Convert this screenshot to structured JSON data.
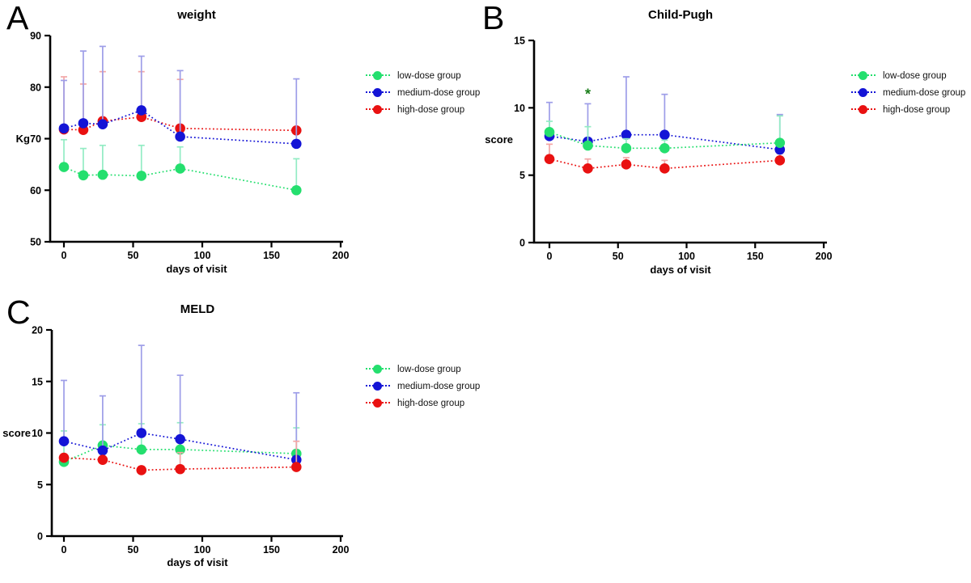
{
  "colors": {
    "low": "#24DF6E",
    "medium": "#1414D6",
    "high": "#E91111",
    "low_pale": "#93ECC4",
    "medium_pale": "#9E9EE8",
    "high_pale": "#F3A6A6",
    "annotation_green": "#1B7E1B",
    "axis": "#000000"
  },
  "chart_data": [
    {
      "panel_letter": "A",
      "type": "line",
      "title": "weight",
      "xlabel": "days of visit",
      "ylabel": "Kg",
      "x": [
        0,
        14,
        28,
        56,
        84,
        168
      ],
      "xticks": [
        0,
        50,
        100,
        150,
        200
      ],
      "yticks": [
        50,
        60,
        70,
        80,
        90
      ],
      "xlim": [
        0,
        200
      ],
      "ylim": [
        50,
        90
      ],
      "grid": false,
      "legend_position": "right",
      "series": [
        {
          "name": "low-dose group",
          "key": "low",
          "y": [
            64.5,
            62.9,
            63.0,
            62.8,
            64.2,
            60.0
          ],
          "err_top": [
            69.8,
            68.1,
            68.7,
            68.7,
            68.4,
            66.1
          ]
        },
        {
          "name": "medium-dose group",
          "key": "medium",
          "y": [
            72.0,
            73.0,
            72.8,
            75.5,
            70.4,
            69.0
          ],
          "err_top": [
            81.3,
            87.0,
            87.9,
            86.0,
            83.2,
            81.6
          ]
        },
        {
          "name": "high-dose group",
          "key": "high",
          "y": [
            71.8,
            71.7,
            73.4,
            74.2,
            72.0,
            71.6
          ],
          "err_top": [
            82.0,
            80.6,
            83.0,
            83.0,
            81.5,
            null
          ]
        }
      ],
      "z_order": [
        0,
        2,
        1
      ],
      "annotations": []
    },
    {
      "panel_letter": "B",
      "type": "line",
      "title": "Child-Pugh",
      "xlabel": "days of visit",
      "ylabel": "score",
      "x": [
        0,
        28,
        56,
        84,
        168
      ],
      "xticks": [
        0,
        50,
        100,
        150,
        200
      ],
      "yticks": [
        0,
        5,
        10,
        15
      ],
      "xlim": [
        0,
        200
      ],
      "ylim": [
        0,
        15
      ],
      "grid": false,
      "legend_position": "right",
      "series": [
        {
          "name": "low-dose group",
          "key": "low",
          "y": [
            8.2,
            7.2,
            7.0,
            7.0,
            7.4
          ],
          "err_top": [
            9.0,
            8.6,
            7.7,
            7.6,
            9.4
          ]
        },
        {
          "name": "medium-dose group",
          "key": "medium",
          "y": [
            7.9,
            7.5,
            8.0,
            8.0,
            6.9
          ],
          "err_top": [
            10.4,
            10.3,
            12.3,
            11.0,
            9.5
          ]
        },
        {
          "name": "high-dose group",
          "key": "high",
          "y": [
            6.2,
            5.5,
            5.8,
            5.5,
            6.1
          ],
          "err_top": [
            7.3,
            6.2,
            6.3,
            6.1,
            6.6
          ]
        }
      ],
      "z_order": [
        2,
        1,
        0
      ],
      "annotations": [
        {
          "text": "*",
          "x": 28,
          "y": 11.0,
          "color": "annotation_green"
        }
      ]
    },
    {
      "panel_letter": "C",
      "type": "line",
      "title": "MELD",
      "xlabel": "days of visit",
      "ylabel": "score",
      "x": [
        0,
        28,
        56,
        84,
        168
      ],
      "xticks": [
        0,
        50,
        100,
        150,
        200
      ],
      "yticks": [
        0,
        5,
        10,
        15,
        20
      ],
      "xlim": [
        0,
        200
      ],
      "ylim": [
        0,
        20
      ],
      "grid": false,
      "legend_position": "right",
      "series": [
        {
          "name": "low-dose group",
          "key": "low",
          "y": [
            7.2,
            8.8,
            8.4,
            8.4,
            8.0
          ],
          "err_top": [
            10.2,
            10.8,
            10.9,
            11.0,
            10.5
          ]
        },
        {
          "name": "medium-dose group",
          "key": "medium",
          "y": [
            9.2,
            8.3,
            10.0,
            9.4,
            7.4
          ],
          "err_top": [
            15.1,
            13.6,
            18.5,
            15.6,
            13.9
          ]
        },
        {
          "name": "high-dose group",
          "key": "high",
          "y": [
            7.6,
            7.4,
            6.4,
            6.5,
            6.7
          ],
          "err_top": [
            null,
            null,
            null,
            8.1,
            9.2
          ]
        }
      ],
      "z_order": [
        0,
        1,
        2
      ],
      "annotations": []
    }
  ]
}
